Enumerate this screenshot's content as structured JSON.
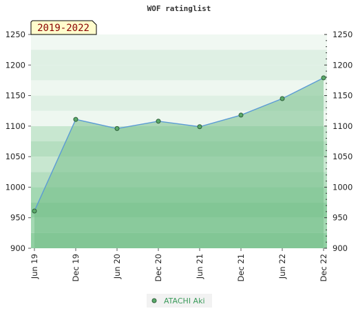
{
  "chart_data": {
    "type": "area",
    "title": "WOF ratinglist",
    "period_label": "2019-2022",
    "x": [
      "Jun 19",
      "Dec 19",
      "Jun 20",
      "Dec 20",
      "Jun 21",
      "Dec 21",
      "Jun 22",
      "Dec 22"
    ],
    "series": [
      {
        "name": "ATACHI Aki",
        "values": [
          961,
          1111,
          1096,
          1108,
          1099,
          1118,
          1145,
          1179
        ]
      }
    ],
    "ylim": [
      900,
      1250
    ],
    "yticks": [
      900,
      950,
      1000,
      1050,
      1100,
      1150,
      1200,
      1250
    ],
    "grid": "horizontal bands",
    "legend_position": "bottom-center",
    "colors": {
      "line": "#5b9bd5",
      "area": "#76c08a",
      "marker": "#5aaa6a",
      "band_light": "#dff0e4",
      "band_mid": "#b5dec0",
      "band_dark": "#90cfa2",
      "label_box": "#fffccc"
    }
  }
}
